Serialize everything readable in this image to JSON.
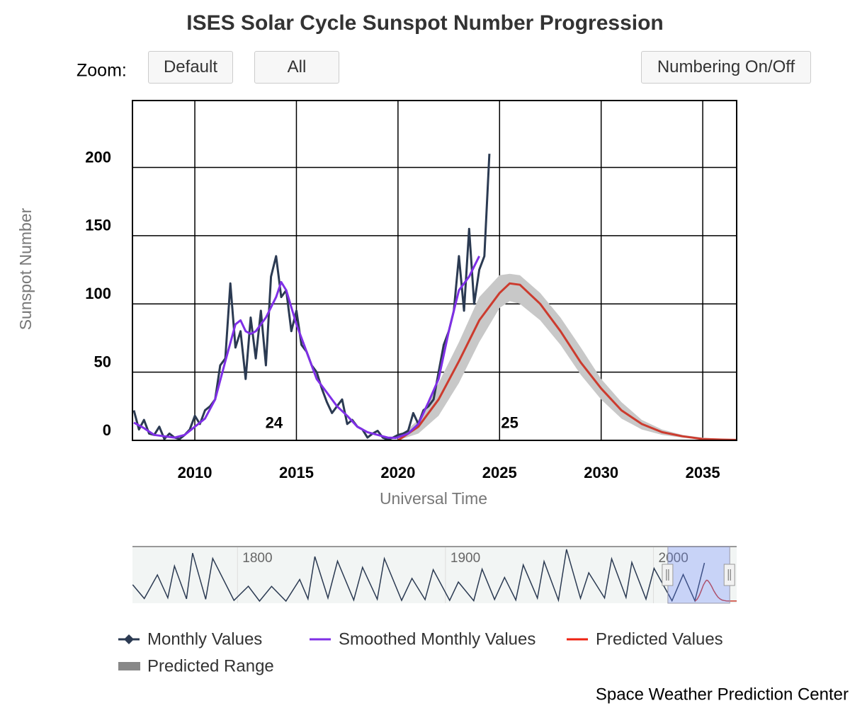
{
  "chart_data": {
    "type": "line",
    "title": "ISES Solar Cycle Sunspot Number Progression",
    "x_label": "Universal Time",
    "y_label": "Sunspot Number",
    "controls": {
      "zoom_label": "Zoom:",
      "buttons": [
        "Default",
        "All",
        "Numbering On/Off"
      ]
    },
    "xlim": [
      2006.93,
      2036.67
    ],
    "xticks": [
      2010,
      2015,
      2020,
      2025,
      2030,
      2035
    ],
    "ylim": [
      0,
      249
    ],
    "yticks": [
      0,
      50,
      100,
      150,
      200
    ],
    "grid": true,
    "series": [
      {
        "name": "Monthly Values",
        "color": "#2b3a52",
        "x": [
          2007.0,
          2007.25,
          2007.5,
          2007.75,
          2008.0,
          2008.25,
          2008.5,
          2008.75,
          2009.0,
          2009.25,
          2009.5,
          2009.75,
          2010.0,
          2010.25,
          2010.5,
          2010.75,
          2011.0,
          2011.25,
          2011.5,
          2011.75,
          2012.0,
          2012.25,
          2012.5,
          2012.75,
          2013.0,
          2013.25,
          2013.5,
          2013.75,
          2014.0,
          2014.25,
          2014.5,
          2014.75,
          2015.0,
          2015.25,
          2015.5,
          2015.75,
          2016.0,
          2016.25,
          2016.5,
          2016.75,
          2017.0,
          2017.25,
          2017.5,
          2017.75,
          2018.0,
          2018.25,
          2018.5,
          2018.75,
          2019.0,
          2019.25,
          2019.5,
          2019.75,
          2020.0,
          2020.25,
          2020.5,
          2020.75,
          2021.0,
          2021.25,
          2021.5,
          2021.75,
          2022.0,
          2022.25,
          2022.5,
          2022.75,
          2023.0,
          2023.25,
          2023.5,
          2023.75,
          2024.0,
          2024.25,
          2024.5
        ],
        "values": [
          22,
          8,
          15,
          5,
          4,
          10,
          1,
          5,
          2,
          1,
          4,
          8,
          18,
          12,
          22,
          25,
          30,
          55,
          60,
          115,
          68,
          80,
          45,
          90,
          60,
          95,
          55,
          120,
          135,
          105,
          110,
          80,
          95,
          70,
          65,
          55,
          50,
          38,
          28,
          20,
          25,
          30,
          12,
          15,
          10,
          8,
          2,
          5,
          7,
          2,
          0.5,
          2,
          4,
          5,
          7,
          20,
          12,
          22,
          25,
          30,
          50,
          70,
          80,
          95,
          135,
          95,
          155,
          100,
          125,
          135,
          210
        ]
      },
      {
        "name": "Smoothed Monthly Values",
        "color": "#7f2fe6",
        "x": [
          2007.0,
          2007.5,
          2008.0,
          2008.5,
          2009.0,
          2009.5,
          2010.0,
          2010.5,
          2011.0,
          2011.5,
          2012.0,
          2012.25,
          2012.5,
          2012.75,
          2013.0,
          2013.5,
          2014.0,
          2014.25,
          2014.5,
          2015.0,
          2015.5,
          2016.0,
          2016.5,
          2017.0,
          2017.5,
          2018.0,
          2018.5,
          2019.0,
          2019.5,
          2019.9,
          2020.5,
          2021.0,
          2021.5,
          2022.0,
          2022.5,
          2023.0,
          2023.5,
          2024.0
        ],
        "values": [
          13,
          9,
          4,
          3,
          2,
          4,
          10,
          16,
          30,
          58,
          85,
          88,
          80,
          78,
          80,
          90,
          105,
          116,
          110,
          85,
          65,
          45,
          35,
          25,
          18,
          10,
          6,
          4,
          2,
          1.8,
          5,
          12,
          28,
          45,
          80,
          110,
          120,
          135
        ]
      },
      {
        "name": "Predicted Values",
        "color": "#cc3b2e",
        "x": [
          2020,
          2021,
          2022,
          2023,
          2024,
          2025,
          2025.5,
          2026,
          2027,
          2028,
          2029,
          2030,
          2031,
          2032,
          2033,
          2034,
          2035,
          2036,
          2036.67
        ],
        "values": [
          0,
          10,
          30,
          58,
          88,
          108,
          115,
          114,
          100,
          80,
          57,
          38,
          22,
          12,
          6,
          3,
          1,
          0.5,
          0.3
        ]
      },
      {
        "name": "Predicted Range",
        "color": "#c8c8c8",
        "legend_color": "#888888",
        "x": [
          2020,
          2021,
          2022,
          2023,
          2024,
          2025,
          2025.5,
          2026,
          2027,
          2028,
          2029,
          2030,
          2031,
          2032,
          2033,
          2034,
          2035,
          2036,
          2036.67
        ],
        "low": [
          0,
          5,
          18,
          42,
          72,
          97,
          102,
          100,
          88,
          70,
          48,
          30,
          16,
          8,
          4,
          2,
          0.5,
          0.2,
          0.1
        ],
        "high": [
          2,
          15,
          42,
          72,
          105,
          121,
          122,
          121,
          108,
          90,
          68,
          45,
          28,
          15,
          8,
          4,
          2,
          1,
          0.5
        ]
      }
    ],
    "annotations": [
      {
        "text": "24",
        "x": 2013.9,
        "y": 12
      },
      {
        "text": "25",
        "x": 2025.5,
        "y": 12
      }
    ],
    "navigator": {
      "xlim": [
        1749.5,
        2040
      ],
      "ylim": [
        0,
        300
      ],
      "xticks": [
        1800,
        1900,
        2000
      ],
      "color": "#2b3a52",
      "x": [
        1749.6,
        1755.2,
        1761.5,
        1766.5,
        1769.7,
        1775.5,
        1778.4,
        1784.7,
        1788.1,
        1798.3,
        1805.2,
        1810.6,
        1816.4,
        1823.3,
        1829.9,
        1833.9,
        1837.2,
        1843.5,
        1848.1,
        1855.9,
        1860.1,
        1867.2,
        1870.6,
        1878.9,
        1883.9,
        1890.2,
        1894.1,
        1902.0,
        1906.2,
        1913.6,
        1917.6,
        1923.6,
        1928.4,
        1933.8,
        1937.4,
        1944.2,
        1947.4,
        1954.3,
        1958.2,
        1964.9,
        1968.9,
        1976.5,
        1979.9,
        1986.8,
        1989.6,
        1996.4,
        2000.3,
        2008.9,
        2014.3,
        2019.9,
        2024.5
      ],
      "values": [
        90,
        14,
        144,
        18,
        193,
        12,
        264,
        10,
        235,
        4,
        82,
        0,
        81,
        0,
        119,
        12,
        245,
        17,
        220,
        6,
        186,
        10,
        234,
        4,
        125,
        8,
        173,
        4,
        105,
        2,
        176,
        9,
        130,
        6,
        199,
        16,
        218,
        5,
        285,
        15,
        156,
        17,
        233,
        20,
        213,
        11,
        180,
        2,
        146,
        2,
        210
      ]
    },
    "credit": "Space Weather Prediction Center"
  }
}
